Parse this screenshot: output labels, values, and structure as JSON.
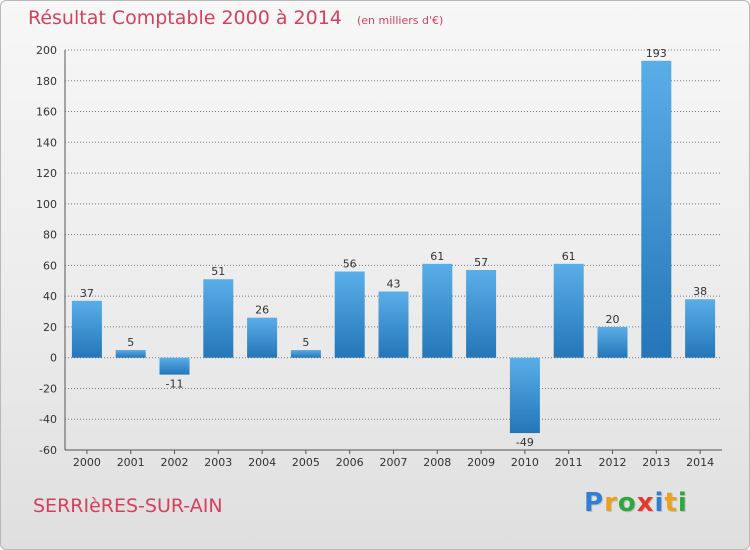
{
  "title": "Résultat Comptable 2000 à 2014",
  "subtitle": "(en milliers d'€)",
  "commune": "SERRIèRES-SUR-AIN",
  "brand": {
    "letters": [
      {
        "ch": "P",
        "color": "#2f7fd6"
      },
      {
        "ch": "r",
        "color": "#e8a21d"
      },
      {
        "ch": "o",
        "color": "#2fa83b"
      },
      {
        "ch": "x",
        "color": "#e23a2e"
      },
      {
        "ch": "i",
        "color": "#2f7fd6"
      },
      {
        "ch": "t",
        "color": "#e8a21d"
      },
      {
        "ch": "i",
        "color": "#2fa83b"
      }
    ]
  },
  "colors": {
    "title": "#d6405c",
    "bar_light": "#5aaee8",
    "bar_dark": "#2476b8",
    "grid": "#7a7a7a"
  },
  "chart_data": {
    "type": "bar",
    "title": "Résultat Comptable 2000 à 2014",
    "subtitle": "(en milliers d'€)",
    "categories": [
      "2000",
      "2001",
      "2002",
      "2003",
      "2004",
      "2005",
      "2006",
      "2007",
      "2008",
      "2009",
      "2010",
      "2011",
      "2012",
      "2013",
      "2014"
    ],
    "values": [
      37,
      5,
      -11,
      51,
      26,
      5,
      56,
      43,
      61,
      57,
      -49,
      61,
      20,
      193,
      38
    ],
    "value_labels": [
      "37",
      "5",
      "-11",
      "51",
      "26",
      "5",
      "56",
      "43",
      "61",
      "57",
      "-49",
      "61",
      "20",
      "193",
      "38"
    ],
    "ylim": [
      -60,
      200
    ],
    "yticks": [
      -60,
      -40,
      -20,
      0,
      20,
      40,
      60,
      80,
      100,
      120,
      140,
      160,
      180,
      200
    ],
    "ytick_labels": [
      "-60",
      "-40",
      "-20",
      "0",
      "20",
      "40",
      "60",
      "80",
      "100",
      "120",
      "140",
      "160",
      "180",
      "200"
    ],
    "grid": true
  }
}
